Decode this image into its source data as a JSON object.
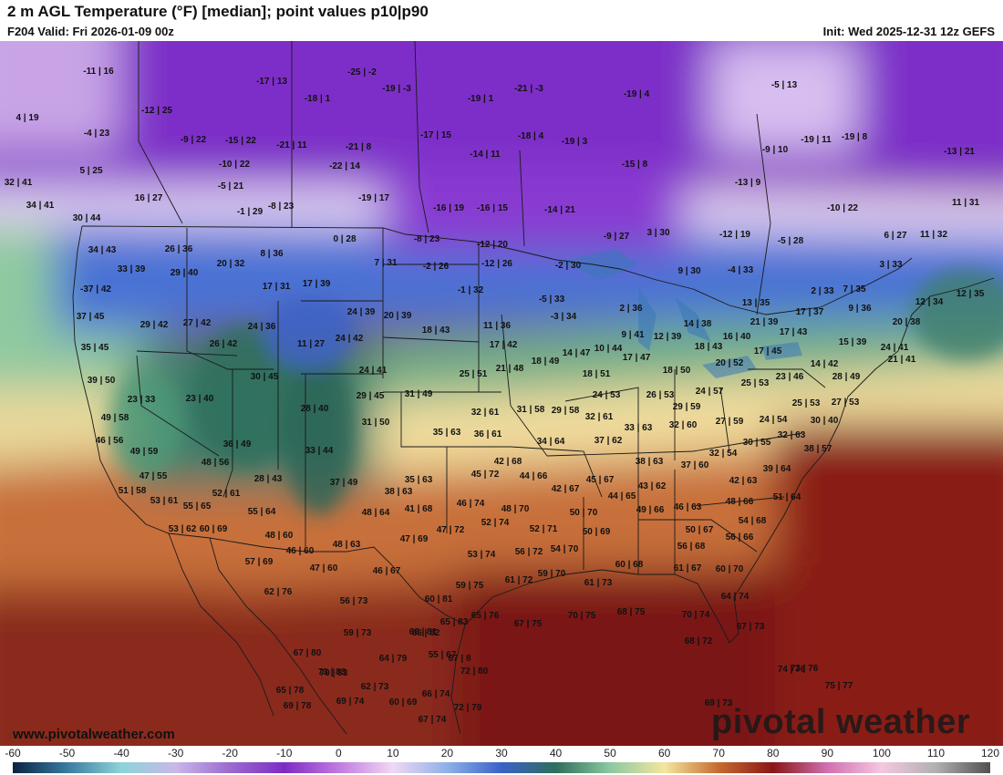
{
  "header": {
    "title": "2 m AGL Temperature (°F) [median]; point values p10|p90",
    "valid": "F204 Valid: Fri 2026-01-09 00z",
    "init": "Init: Wed 2025-12-31 12z GEFS"
  },
  "footer": {
    "website": "www.pivotalweather.com",
    "brand": "pivotal weather"
  },
  "colorbar": {
    "ticks": [
      "-60",
      "-50",
      "-40",
      "-30",
      "-20",
      "-10",
      "0",
      "10",
      "20",
      "30",
      "40",
      "50",
      "60",
      "70",
      "80",
      "90",
      "100",
      "110",
      "120"
    ],
    "range": [
      -60,
      120
    ],
    "stops": [
      {
        "v": -60,
        "c": "#0a2342"
      },
      {
        "v": -50,
        "c": "#3a7aa0"
      },
      {
        "v": -40,
        "c": "#8fd3d8"
      },
      {
        "v": -30,
        "c": "#c9b8e8"
      },
      {
        "v": -20,
        "c": "#9b6ad0"
      },
      {
        "v": -10,
        "c": "#7c2cc4"
      },
      {
        "v": 0,
        "c": "#c07ae0"
      },
      {
        "v": 10,
        "c": "#f0d8f4"
      },
      {
        "v": 20,
        "c": "#8fb0e8"
      },
      {
        "v": 30,
        "c": "#3a62c8"
      },
      {
        "v": 40,
        "c": "#2f6e5c"
      },
      {
        "v": 50,
        "c": "#8cc8a0"
      },
      {
        "v": 60,
        "c": "#f4e6a0"
      },
      {
        "v": 70,
        "c": "#c66a30"
      },
      {
        "v": 80,
        "c": "#8a1616"
      },
      {
        "v": 90,
        "c": "#d070b0"
      },
      {
        "v": 100,
        "c": "#f4c8e0"
      },
      {
        "v": 110,
        "c": "#b0b0b0"
      },
      {
        "v": 120,
        "c": "#505050"
      }
    ]
  },
  "point_values": [
    "-11 | 16",
    "-17 | 13",
    "-25 | -2",
    "-19 | -3",
    "-21 | -3",
    "-19 | 4",
    "-5 | 13",
    "4 | 19",
    "-12 | 25",
    "-4 | 23",
    "-18 | 1",
    "-19 | 1",
    "-9 | 22",
    "-15 | 22",
    "-21 | 11",
    "-21 | 8",
    "-17 | 15",
    "-18 | 4",
    "-19 | 3",
    "-9 | 10",
    "-19 | 11",
    "-19 | 8",
    "-13 | 21",
    "5 | 25",
    "-10 | 22",
    "-22 | 14",
    "-14 | 11",
    "-15 | 8",
    "32 | 41",
    "-5 | 21",
    "-13 | 9",
    "16 | 27",
    "-19 | 17",
    "34 | 41",
    "-8 | 23",
    "-1 | 29",
    "-16 | 19",
    "-16 | 15",
    "-14 | 21",
    "-10 | 22",
    "11 | 31",
    "30 | 44",
    "0 | 28",
    "-8 | 23",
    "-12 | 20",
    "-9 | 27",
    "3 | 30",
    "-12 | 19",
    "-5 | 28",
    "6 | 27",
    "11 | 32",
    "34 | 43",
    "26 | 36",
    "8 | 36",
    "20 | 32",
    "7 | 31",
    "-2 | 26",
    "-12 | 26",
    "-2 | 30",
    "3 | 33",
    "33 | 39",
    "29 | 40",
    "9 | 30",
    "-4 | 33",
    "-37 | 42",
    "17 | 31",
    "17 | 39",
    "-1 | 32",
    "2 | 33",
    "7 | 35",
    "12 | 34",
    "12 | 35",
    "-5 | 33",
    "13 | 35",
    "9 | 36",
    "37 | 45",
    "24 | 39",
    "20 | 39",
    "-3 | 34",
    "2 | 36",
    "21 | 39",
    "17 | 37",
    "20 | 38",
    "29 | 42",
    "27 | 42",
    "24 | 36",
    "11 | 36",
    "14 | 38",
    "17 | 43",
    "35 | 45",
    "26 | 42",
    "11 | 27",
    "24 | 42",
    "18 | 43",
    "17 | 42",
    "9 | 41",
    "12 | 39",
    "16 | 40",
    "15 | 39",
    "24 | 41",
    "14 | 47",
    "10 | 44",
    "18 | 43",
    "17 | 45",
    "39 | 50",
    "30 | 45",
    "24 | 41",
    "25 | 51",
    "21 | 48",
    "18 | 49",
    "17 | 47",
    "18 | 50",
    "20 | 52",
    "21 | 41",
    "18 | 51",
    "14 | 42",
    "23 | 33",
    "23 | 40",
    "29 | 45",
    "31 | 49",
    "25 | 53",
    "23 | 46",
    "28 | 49",
    "24 | 53",
    "26 | 53",
    "24 | 57",
    "28 | 40",
    "32 | 61",
    "31 | 58",
    "29 | 58",
    "29 | 59",
    "25 | 53",
    "27 | 53",
    "49 | 58",
    "32 | 61",
    "27 | 59",
    "24 | 54",
    "31 | 50",
    "32 | 60",
    "30 | 40",
    "35 | 63",
    "33 | 63",
    "36 | 61",
    "46 | 56",
    "32 | 63",
    "36 | 49",
    "34 | 64",
    "37 | 62",
    "30 | 55",
    "38 | 57",
    "49 | 59",
    "48 | 56",
    "33 | 44",
    "32 | 54",
    "38 | 63",
    "42 | 68",
    "39 | 64",
    "37 | 60",
    "45 | 72",
    "47 | 55",
    "28 | 43",
    "37 | 49",
    "44 | 66",
    "35 | 63",
    "45 | 67",
    "42 | 67",
    "42 | 63",
    "52 | 61",
    "51 | 58",
    "43 | 62",
    "38 | 63",
    "44 | 65",
    "53 | 61",
    "46 | 74",
    "51 | 64",
    "48 | 66",
    "55 | 65",
    "55 | 64",
    "41 | 68",
    "48 | 64",
    "48 | 70",
    "50 | 70",
    "49 | 66",
    "46 | 63",
    "54 | 68",
    "53 | 62",
    "60 | 69",
    "52 | 74",
    "50 | 67",
    "47 | 72",
    "52 | 71",
    "50 | 69",
    "48 | 60",
    "47 | 69",
    "56 | 66",
    "48 | 63",
    "46 | 60",
    "56 | 72",
    "54 | 70",
    "56 | 68",
    "53 | 74",
    "57 | 69",
    "47 | 60",
    "46 | 67",
    "60 | 68",
    "61 | 67",
    "60 | 70",
    "59 | 70",
    "59 | 75",
    "61 | 72",
    "61 | 73",
    "62 | 76",
    "64 | 74",
    "56 | 73",
    "60 | 81",
    "65 | 76",
    "67 | 75",
    "70 | 75",
    "68 | 75",
    "66 | 81",
    "65 | 83",
    "70 | 74",
    "67 | 73",
    "59 | 73",
    "66 | 82",
    "68 | 72",
    "73 | 76",
    "73 | 83",
    "67 | 80",
    "55 | 67",
    "64 | 79",
    "67 | 8",
    "72 | 80",
    "70 | 83",
    "65 | 78",
    "74 | 76",
    "75 | 77",
    "62 | 73",
    "66 | 74",
    "69 | 78",
    "69 | 74",
    "60 | 69",
    "72 | 79",
    "67 | 74",
    "69 | 73"
  ]
}
